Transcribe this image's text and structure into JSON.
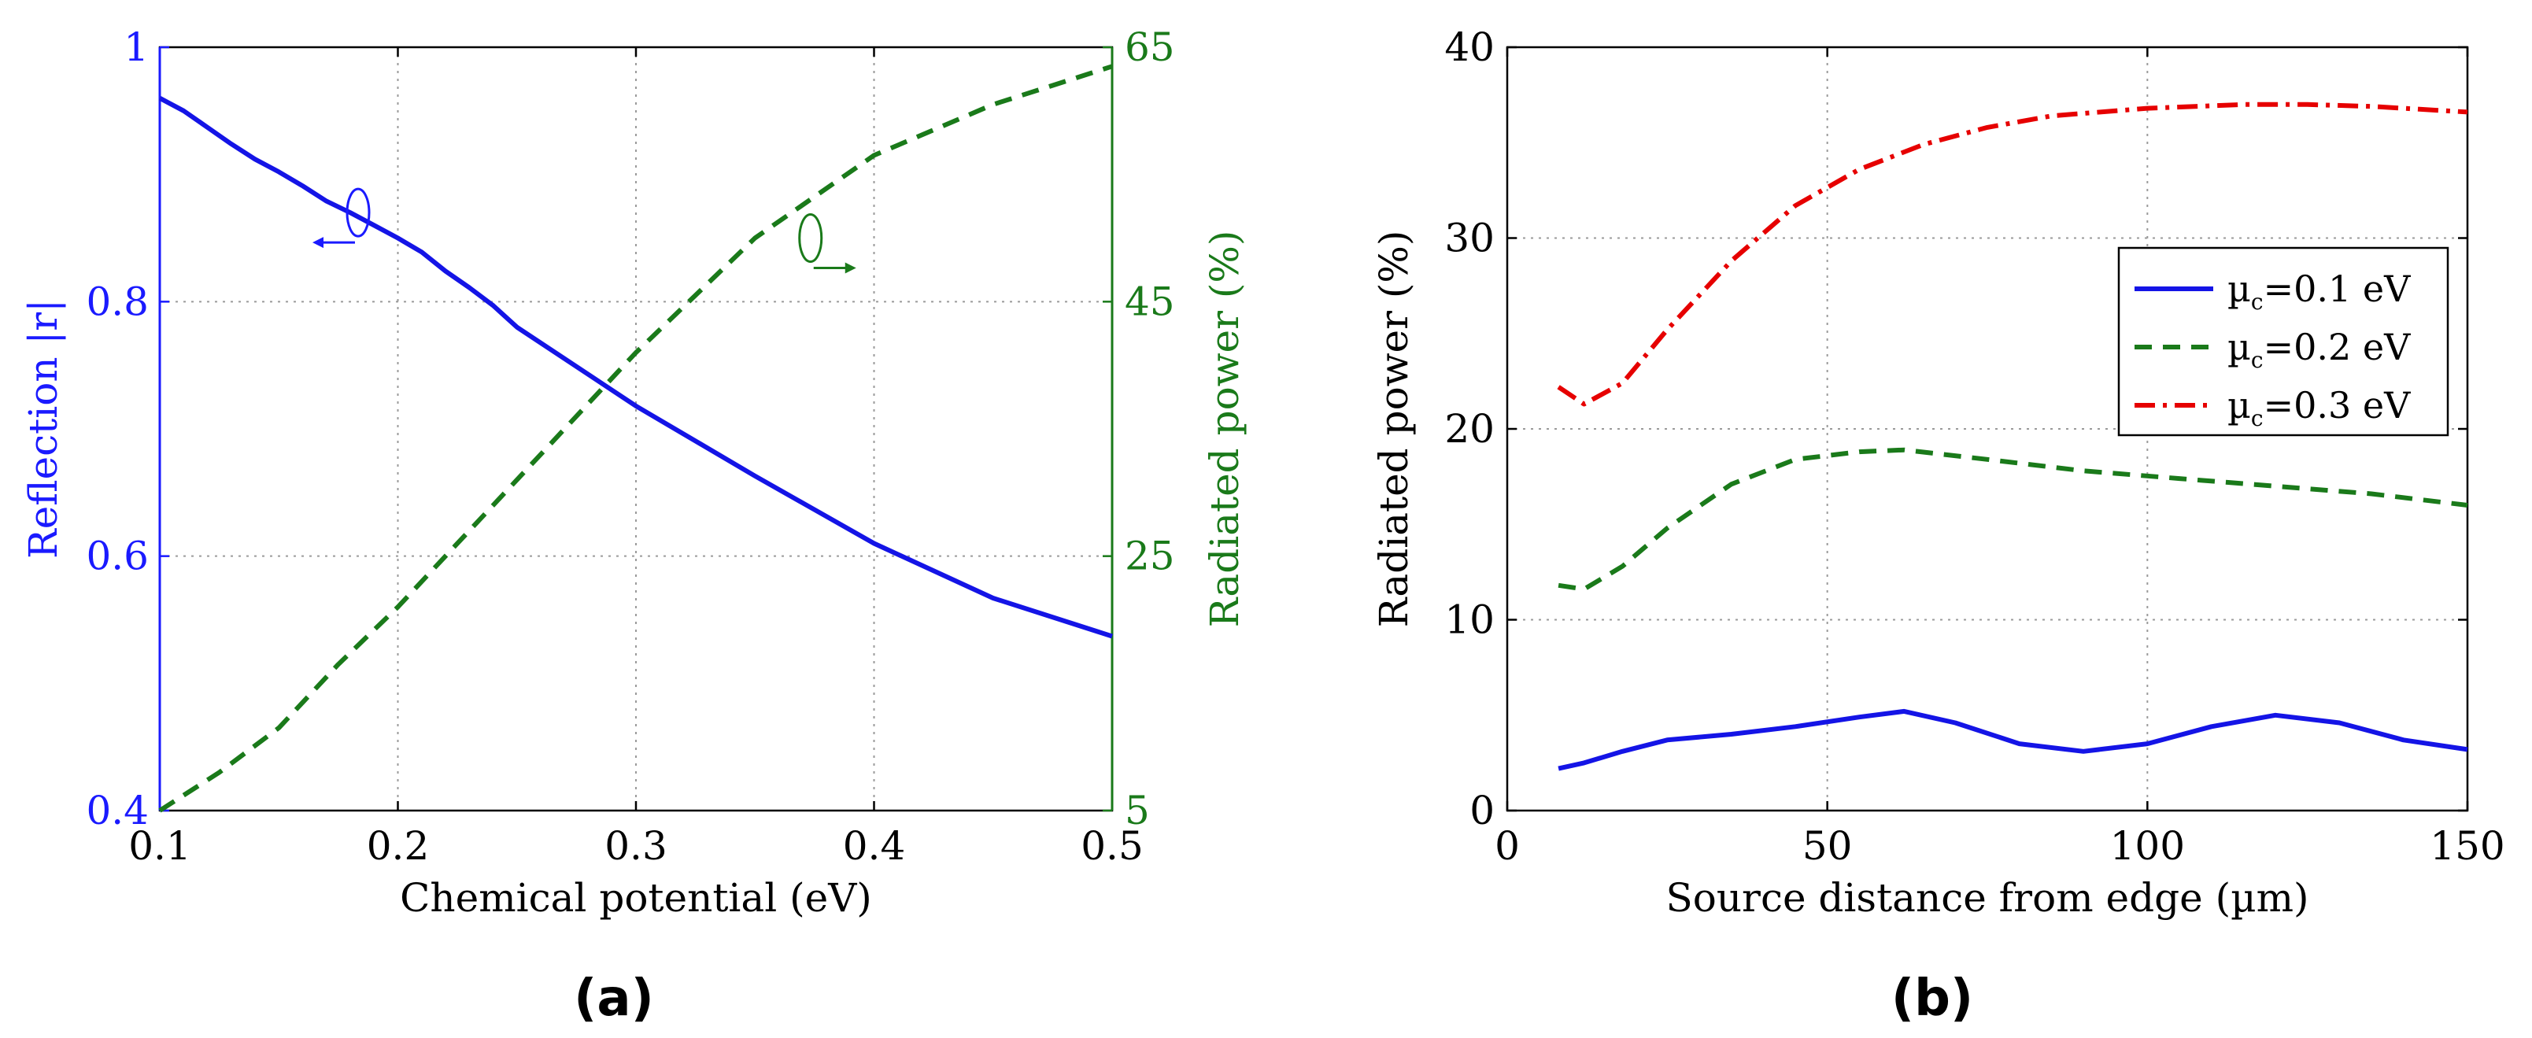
{
  "chart_data": [
    {
      "type": "line",
      "panel_label": "(a)",
      "xlabel": "Chemical potential (eV)",
      "ylabel_left": "Reflection |r|",
      "ylabel_right": "Radiated power (%)",
      "xlim": [
        0.1,
        0.5
      ],
      "ylim_left": [
        0.4,
        1.0
      ],
      "ylim_right": [
        5,
        65
      ],
      "xticks": [
        0.1,
        0.2,
        0.3,
        0.4,
        0.5
      ],
      "xtick_labels": [
        "0.1",
        "0.2",
        "0.3",
        "0.4",
        "0.5"
      ],
      "yticks_left": [
        0.4,
        0.6,
        0.8,
        1.0
      ],
      "ytick_labels_left": [
        "0.4",
        "0.6",
        "0.8",
        "1"
      ],
      "yticks_right": [
        5,
        25,
        45,
        65
      ],
      "ytick_labels_right": [
        "5",
        "25",
        "45",
        "65"
      ],
      "grid": true,
      "colors": {
        "left_axis": "#1a1aff",
        "right_axis": "#1a7a1a"
      },
      "series": [
        {
          "axis": "left",
          "style": "solid",
          "color": "#1414e6",
          "x": [
            0.1,
            0.11,
            0.12,
            0.13,
            0.14,
            0.15,
            0.16,
            0.17,
            0.18,
            0.19,
            0.2,
            0.21,
            0.22,
            0.23,
            0.24,
            0.25,
            0.3,
            0.35,
            0.4,
            0.45,
            0.5
          ],
          "y": [
            0.96,
            0.95,
            0.937,
            0.924,
            0.912,
            0.902,
            0.891,
            0.879,
            0.87,
            0.86,
            0.85,
            0.839,
            0.824,
            0.811,
            0.797,
            0.78,
            0.718,
            0.663,
            0.61,
            0.567,
            0.537
          ]
        },
        {
          "axis": "right",
          "style": "dashed",
          "color": "#1a7a1a",
          "x": [
            0.1,
            0.125,
            0.15,
            0.175,
            0.2,
            0.25,
            0.3,
            0.35,
            0.4,
            0.45,
            0.5
          ],
          "y": [
            5,
            8,
            11.5,
            16.5,
            21,
            31,
            41,
            50,
            56.5,
            60.5,
            63.5
          ]
        }
      ],
      "annotations": [
        {
          "target": "left",
          "near_x": 0.18,
          "near_y_left": 0.87,
          "arrow": "left"
        },
        {
          "target": "right",
          "near_x": 0.37,
          "near_y_right": 50,
          "arrow": "right"
        }
      ]
    },
    {
      "type": "line",
      "panel_label": "(b)",
      "xlabel": "Source distance from edge (µm)",
      "ylabel": "Radiated power (%)",
      "xlim": [
        0,
        150
      ],
      "ylim": [
        0,
        40
      ],
      "xticks": [
        0,
        50,
        100,
        150
      ],
      "xtick_labels": [
        "0",
        "50",
        "100",
        "150"
      ],
      "yticks": [
        0,
        10,
        20,
        30,
        40
      ],
      "ytick_labels": [
        "0",
        "10",
        "20",
        "30",
        "40"
      ],
      "grid": true,
      "legend_position": "center-right",
      "series": [
        {
          "name_main": "µ",
          "name_sub": "c",
          "name_rest": "=0.1 eV",
          "style": "solid",
          "color": "#1414e6",
          "x": [
            8,
            12,
            18,
            25,
            35,
            45,
            55,
            62,
            70,
            80,
            90,
            100,
            110,
            120,
            130,
            140,
            150
          ],
          "y": [
            2.2,
            2.5,
            3.1,
            3.7,
            4.0,
            4.4,
            4.9,
            5.2,
            4.6,
            3.5,
            3.1,
            3.5,
            4.4,
            5.0,
            4.6,
            3.7,
            3.2
          ]
        },
        {
          "name_main": "µ",
          "name_sub": "c",
          "name_rest": "=0.2 eV",
          "style": "dashed",
          "color": "#1a7a1a",
          "x": [
            8,
            12,
            18,
            25,
            35,
            45,
            55,
            62,
            75,
            90,
            105,
            120,
            135,
            150
          ],
          "y": [
            11.8,
            11.6,
            12.8,
            14.8,
            17.1,
            18.4,
            18.8,
            18.9,
            18.4,
            17.8,
            17.4,
            17.0,
            16.6,
            16.0
          ]
        },
        {
          "name_main": "µ",
          "name_sub": "c",
          "name_rest": "=0.3 eV",
          "style": "dashdot",
          "color": "#e60000",
          "x": [
            8,
            12,
            18,
            25,
            35,
            45,
            55,
            65,
            75,
            85,
            100,
            115,
            125,
            135,
            150
          ],
          "y": [
            22.2,
            21.3,
            22.4,
            25.2,
            28.8,
            31.7,
            33.6,
            34.9,
            35.8,
            36.4,
            36.8,
            37.0,
            37.0,
            36.9,
            36.6
          ]
        }
      ]
    }
  ]
}
